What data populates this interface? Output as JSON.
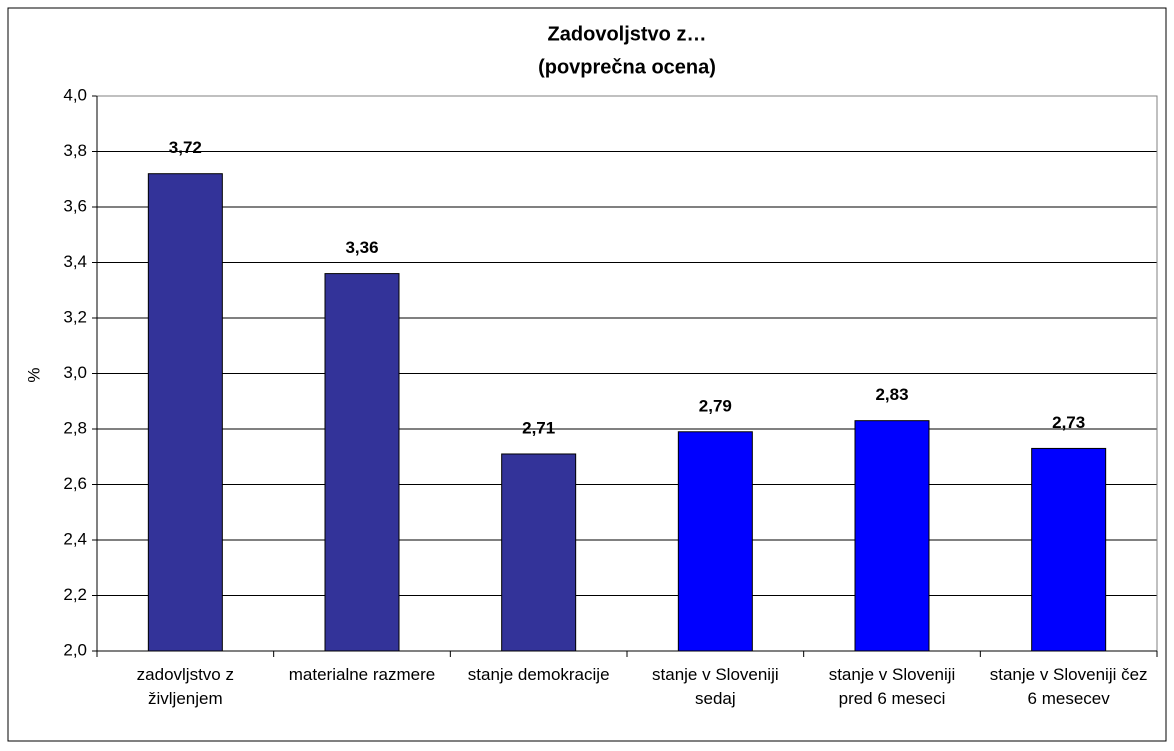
{
  "chart_data": {
    "type": "bar",
    "title": "Zadovoljstvo z…",
    "subtitle": "(povprečna ocena)",
    "y_label": "%",
    "categories": [
      "zadovljstvo z življenjem",
      "materialne razmere",
      "stanje demokracije",
      "stanje v Sloveniji sedaj",
      "stanje v Sloveniji pred 6 meseci",
      "stanje v Sloveniji čez 6 mesecev"
    ],
    "values": [
      3.72,
      3.36,
      2.71,
      2.79,
      2.83,
      2.73
    ],
    "value_labels": [
      "3,72",
      "3,36",
      "2,71",
      "2,79",
      "2,83",
      "2,73"
    ],
    "colors": [
      "#333399",
      "#333399",
      "#333399",
      "#0000ff",
      "#0000ff",
      "#0000ff"
    ],
    "ylim": [
      2.0,
      4.0
    ],
    "yticks": [
      {
        "value": 2.0,
        "label": "2,0"
      },
      {
        "value": 2.2,
        "label": "2,2"
      },
      {
        "value": 2.4,
        "label": "2,4"
      },
      {
        "value": 2.6,
        "label": "2,6"
      },
      {
        "value": 2.8,
        "label": "2,8"
      },
      {
        "value": 3.0,
        "label": "3,0"
      },
      {
        "value": 3.2,
        "label": "3,2"
      },
      {
        "value": 3.4,
        "label": "3,4"
      },
      {
        "value": 3.6,
        "label": "3,6"
      },
      {
        "value": 3.8,
        "label": "3,8"
      },
      {
        "value": 4.0,
        "label": "4,0"
      }
    ],
    "grid": true
  }
}
